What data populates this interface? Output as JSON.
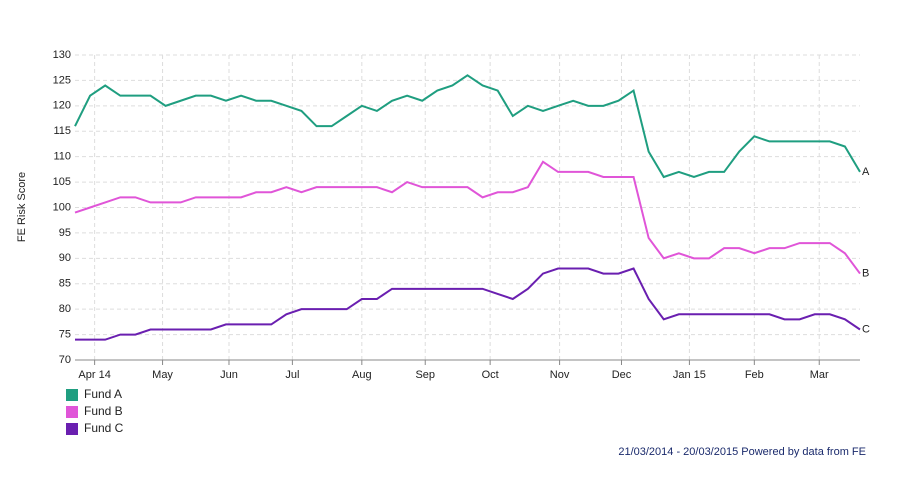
{
  "chart_data": {
    "type": "line",
    "y_label": "FE Risk Score",
    "footer": "21/03/2014 - 20/03/2015 Powered by data from FE",
    "xlim": [
      0,
      52
    ],
    "xticks": [
      {
        "value": 1.3,
        "label": "Apr 14"
      },
      {
        "value": 5.8,
        "label": "May"
      },
      {
        "value": 10.2,
        "label": "Jun"
      },
      {
        "value": 14.4,
        "label": "Jul"
      },
      {
        "value": 19.0,
        "label": "Aug"
      },
      {
        "value": 23.2,
        "label": "Sep"
      },
      {
        "value": 27.5,
        "label": "Oct"
      },
      {
        "value": 32.1,
        "label": "Nov"
      },
      {
        "value": 36.2,
        "label": "Dec"
      },
      {
        "value": 40.7,
        "label": "Jan 15"
      },
      {
        "value": 45.0,
        "label": "Feb"
      },
      {
        "value": 49.3,
        "label": "Mar"
      }
    ],
    "ylim": [
      70,
      130
    ],
    "yticks": [
      70,
      75,
      80,
      85,
      90,
      95,
      100,
      105,
      110,
      115,
      120,
      125,
      130
    ],
    "grid": true,
    "legend": "bottom-left",
    "series": [
      {
        "name": "Fund A",
        "label": "A",
        "color": "#1f9e80",
        "values": [
          116,
          122,
          124,
          122,
          122,
          122,
          120,
          121,
          122,
          122,
          121,
          122,
          121,
          121,
          120,
          119,
          116,
          116,
          118,
          120,
          119,
          121,
          122,
          121,
          123,
          124,
          126,
          124,
          123,
          118,
          120,
          119,
          120,
          121,
          120,
          120,
          121,
          123,
          111,
          106,
          107,
          106,
          107,
          107,
          111,
          114,
          113,
          113,
          113,
          113,
          113,
          112,
          107
        ]
      },
      {
        "name": "Fund B",
        "label": "B",
        "color": "#e055d8",
        "values": [
          99,
          100,
          101,
          102,
          102,
          101,
          101,
          101,
          102,
          102,
          102,
          102,
          103,
          103,
          104,
          103,
          104,
          104,
          104,
          104,
          104,
          103,
          105,
          104,
          104,
          104,
          104,
          102,
          103,
          103,
          104,
          109,
          107,
          107,
          107,
          106,
          106,
          106,
          94,
          90,
          91,
          90,
          90,
          92,
          92,
          91,
          92,
          92,
          93,
          93,
          93,
          91,
          87
        ]
      },
      {
        "name": "Fund C",
        "label": "C",
        "color": "#6a1fb0",
        "values": [
          74,
          74,
          74,
          75,
          75,
          76,
          76,
          76,
          76,
          76,
          77,
          77,
          77,
          77,
          79,
          80,
          80,
          80,
          80,
          82,
          82,
          84,
          84,
          84,
          84,
          84,
          84,
          84,
          83,
          82,
          84,
          87,
          88,
          88,
          88,
          87,
          87,
          88,
          82,
          78,
          79,
          79,
          79,
          79,
          79,
          79,
          79,
          78,
          78,
          79,
          79,
          78,
          76
        ]
      }
    ]
  }
}
